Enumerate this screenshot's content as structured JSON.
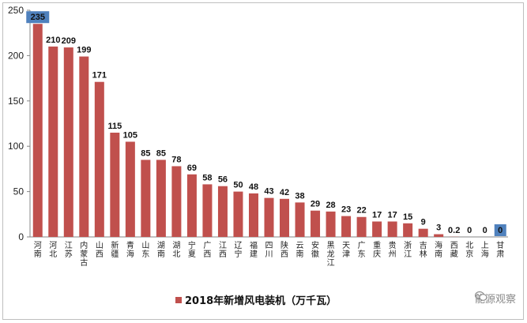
{
  "chart_data": {
    "type": "bar",
    "title": "",
    "xlabel": "",
    "ylabel": "",
    "ylim": [
      0,
      250
    ],
    "yticks": [
      0,
      50,
      100,
      150,
      200,
      250
    ],
    "grid": false,
    "legend_position": "bottom-center",
    "series": [
      {
        "name": "2018年新增风电装机（万千瓦）",
        "color": "#c0504d"
      }
    ],
    "categories": [
      "河南",
      "河北",
      "江苏",
      "内蒙古",
      "山西",
      "新疆",
      "青海",
      "山东",
      "湖南",
      "湖北",
      "宁夏",
      "广西",
      "江西",
      "辽宁",
      "福建",
      "四川",
      "陕西",
      "云南",
      "安徽",
      "黑龙江",
      "天津",
      "广东",
      "重庆",
      "贵州",
      "浙江",
      "吉林",
      "海南",
      "西藏",
      "北京",
      "上海",
      "甘肃"
    ],
    "values": [
      235,
      210,
      209,
      199,
      171,
      115,
      105,
      85,
      85,
      78,
      69,
      58,
      56,
      50,
      48,
      43,
      42,
      38,
      29,
      28,
      23,
      22,
      17,
      17,
      15,
      9,
      3,
      0.2,
      0,
      0,
      0
    ],
    "value_labels": [
      "235",
      "210",
      "209",
      "199",
      "171",
      "115",
      "105",
      "85",
      "85",
      "78",
      "69",
      "58",
      "56",
      "50",
      "48",
      "43",
      "42",
      "38",
      "29",
      "28",
      "23",
      "22",
      "17",
      "17",
      "15",
      "9",
      "3",
      "0.2",
      "0",
      "0",
      "0"
    ],
    "highlighted_labels": [
      "235",
      "0"
    ],
    "highlight_color": "#4f81bd"
  },
  "watermark": {
    "text": "能源观察",
    "icon": "wechat-icon"
  }
}
